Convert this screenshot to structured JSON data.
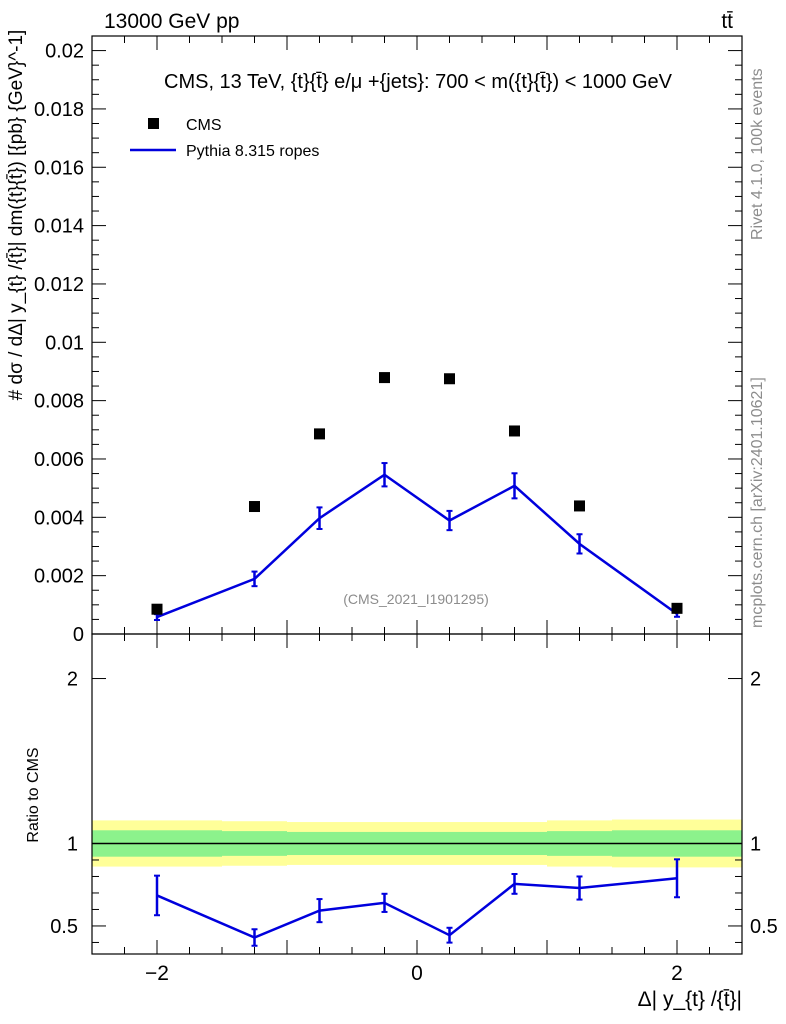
{
  "header": {
    "energy_label": "13000 GeV pp",
    "process_label": "tt̄"
  },
  "side_texts": {
    "rivet": "Rivet 4.1.0,  100k events",
    "mcplots": "mcplots.cern.ch [arXiv:2401.10621]"
  },
  "chart_data": [
    {
      "type": "scatter",
      "panel": "main",
      "title": "CMS, 13 TeV, {t}{t̄} e/μ +{jets}: 700 < m({t}{t̄}) < 1000 GeV",
      "watermark": "(CMS_2021_I1901295)",
      "ylabel": "# dσ / dΔ| y_{t} /{t̄}| dm({t}{t̄}) [{pb} {GeV}^-1]",
      "xlabel": "",
      "xlim": [
        -2.5,
        2.5
      ],
      "ylim": [
        0,
        0.0205
      ],
      "yticks": [
        0,
        0.002,
        0.004,
        0.006,
        0.008,
        0.01,
        0.012,
        0.014,
        0.016,
        0.018,
        0.02
      ],
      "ytick_labels": [
        "0",
        "0.002",
        "0.004",
        "0.006",
        "0.008",
        "0.01",
        "0.012",
        "0.014",
        "0.016",
        "0.018",
        "0.02"
      ],
      "bin_edges": [
        -2.5,
        -1.5,
        -1.0,
        -0.5,
        0.0,
        0.5,
        1.0,
        1.5,
        2.5
      ],
      "x": [
        -2.0,
        -1.25,
        -0.75,
        -0.25,
        0.25,
        0.75,
        1.25,
        2.0
      ],
      "legend": [
        {
          "name": "CMS",
          "marker": "square",
          "color": "#000000"
        },
        {
          "name": "Pythia 8.315 ropes",
          "marker": "line",
          "color": "#0000dd"
        }
      ],
      "series": [
        {
          "name": "CMS",
          "values": [
            0.00085,
            0.00437,
            0.00686,
            0.00879,
            0.00875,
            0.00696,
            0.00439,
            0.00088
          ]
        },
        {
          "name": "Pythia 8.315 ropes",
          "values": [
            0.00058,
            0.00189,
            0.00397,
            0.00546,
            0.00389,
            0.00508,
            0.00309,
            0.00069
          ],
          "errors": [
            0.0001,
            0.00025,
            0.00037,
            0.0004,
            0.00033,
            0.00043,
            0.00033,
            0.0001
          ]
        }
      ]
    },
    {
      "type": "line",
      "panel": "ratio",
      "ylabel": "Ratio to CMS",
      "xlabel": "Δ| y_{t} /{t̄}|",
      "xlim": [
        -2.5,
        2.5
      ],
      "ylim": [
        0.33,
        2.27
      ],
      "yticks": [
        0.5,
        1,
        2
      ],
      "ytick_labels": [
        "0.5",
        "1",
        "2"
      ],
      "xticks": [
        -2,
        0,
        2
      ],
      "xtick_labels": [
        "−2",
        "0",
        "2"
      ],
      "reference": 1,
      "band_inner": [
        0.92,
        0.925,
        0.93,
        0.93,
        0.93,
        0.93,
        0.925,
        0.92
      ],
      "band_outer": [
        0.86,
        0.865,
        0.87,
        0.87,
        0.87,
        0.87,
        0.86,
        0.855
      ],
      "x": [
        -2.0,
        -1.25,
        -0.75,
        -0.25,
        0.25,
        0.75,
        1.25,
        2.0
      ],
      "series": [
        {
          "name": "Pythia 8.315 ropes",
          "values": [
            0.685,
            0.43,
            0.593,
            0.64,
            0.444,
            0.755,
            0.73,
            0.789
          ],
          "errors": [
            0.12,
            0.05,
            0.07,
            0.055,
            0.045,
            0.06,
            0.07,
            0.115
          ]
        }
      ]
    }
  ]
}
